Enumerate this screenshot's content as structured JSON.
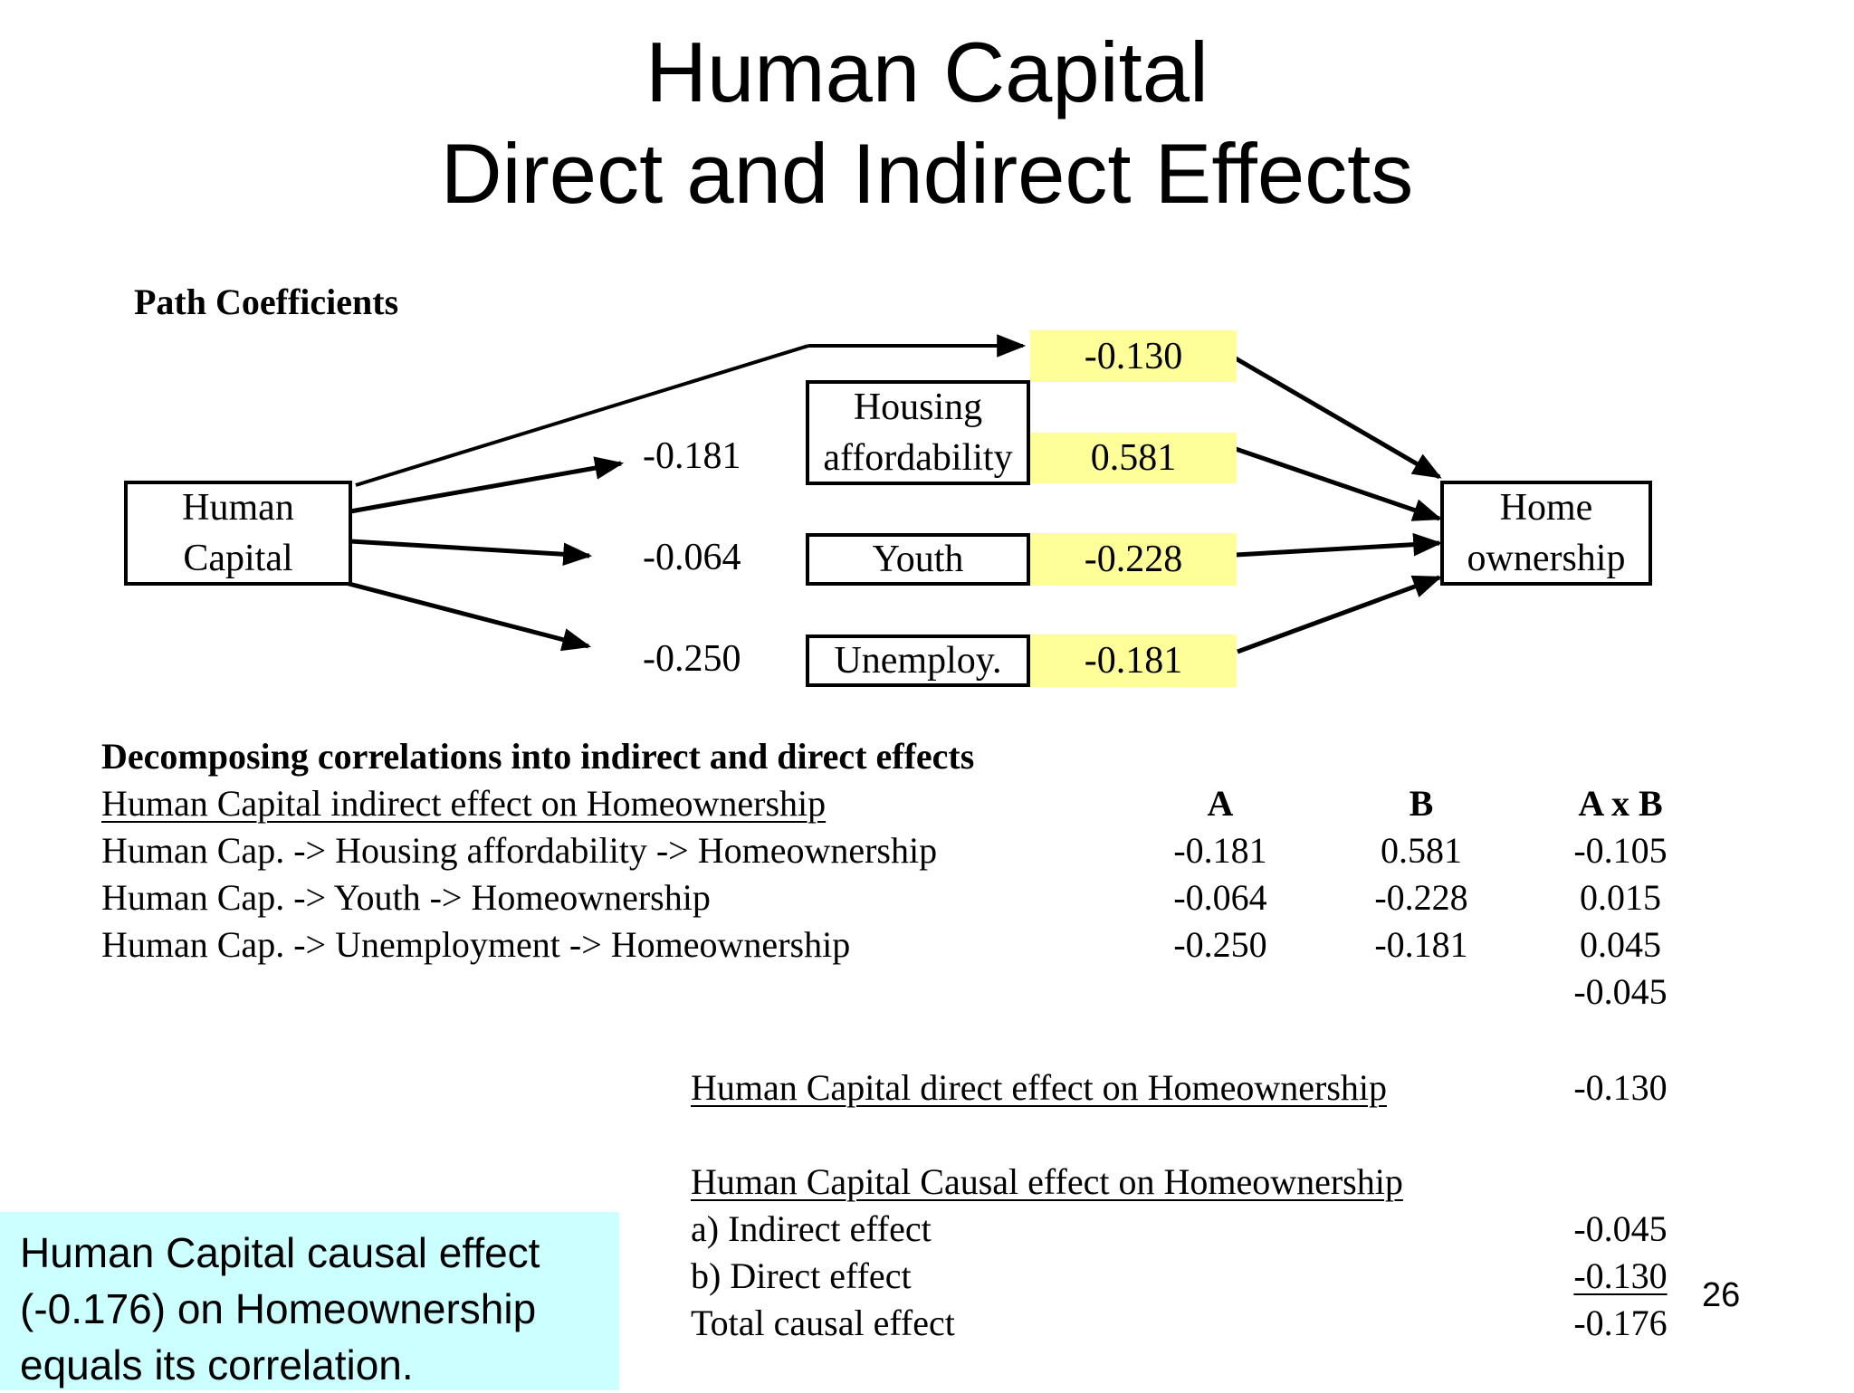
{
  "title": {
    "line1": "Human Capital",
    "line2": "Direct and Indirect Effects"
  },
  "path_section": {
    "heading": "Path Coefficients",
    "source_box": {
      "line1": "Human",
      "line2": "Capital"
    },
    "target_box": {
      "line1": "Home",
      "line2": "ownership"
    },
    "mediators": [
      {
        "line1": "Housing",
        "line2": "affordability",
        "a": "-0.181",
        "b": "0.581"
      },
      {
        "line1": "Youth",
        "a": "-0.064",
        "b": "-0.228"
      },
      {
        "line1": "Unemploy.",
        "a": "-0.250",
        "b": "-0.181"
      }
    ],
    "direct_coefficient": "-0.130",
    "highlight_color": "#ffff99"
  },
  "decomposition": {
    "heading": "Decomposing correlations into indirect and direct effects",
    "subheading": "Human Capital indirect effect on Homeownership",
    "col_a": "A",
    "col_b": "B",
    "col_ab": "A x B",
    "rows": [
      {
        "label": "Human Cap. -> Housing affordability -> Homeownership",
        "a": "-0.181",
        "b": "0.581",
        "ab": "-0.105"
      },
      {
        "label": "Human Cap. -> Youth -> Homeownership",
        "a": "-0.064",
        "b": "-0.228",
        "ab": "0.015"
      },
      {
        "label": "Human Cap. -> Unemployment -> Homeownership",
        "a": "-0.250",
        "b": "-0.181",
        "ab": "0.045"
      }
    ],
    "indirect_sum": "-0.045"
  },
  "direct": {
    "label": "Human Capital direct effect on Homeownership",
    "value": "-0.130"
  },
  "causal": {
    "heading": "Human Capital Causal effect on Homeownership",
    "rows": [
      {
        "label": "a) Indirect effect",
        "value": "-0.045"
      },
      {
        "label": "b) Direct effect",
        "value": "-0.130"
      },
      {
        "label": "Total causal effect",
        "value": "-0.176"
      }
    ]
  },
  "note": {
    "line1": "Human Capital causal effect",
    "line2": "(-0.176) on Homeownership",
    "line3": "equals its correlation.",
    "background": "#ccffff"
  },
  "page_number": "26"
}
